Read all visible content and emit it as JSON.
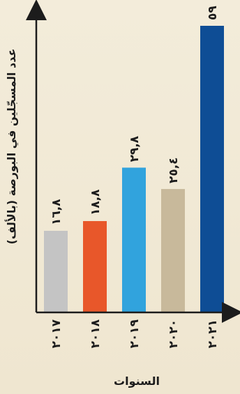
{
  "chart_data": {
    "type": "bar",
    "categories": [
      "٢٠١٧",
      "٢٠١٨",
      "٢٠١٩",
      "٢٠٢٠",
      "٢٠٢١"
    ],
    "values": [
      16.8,
      18.8,
      29.8,
      25.4,
      59
    ],
    "value_labels": [
      "١٦,٨",
      "١٨,٨",
      "٢٩,٨",
      "٢٥,٤",
      "٥٩"
    ],
    "bar_colors": [
      "#c4c4c4",
      "#e8572a",
      "#31a3dd",
      "#c8b99b",
      "#0e4d95"
    ],
    "xlabel": "السنوات",
    "ylabel": "عدد المسجّلين في البورصة (بالألف)",
    "ylim": [
      0,
      59
    ],
    "grid": false,
    "legend": "none",
    "axis_color": "#1c1c1c"
  }
}
